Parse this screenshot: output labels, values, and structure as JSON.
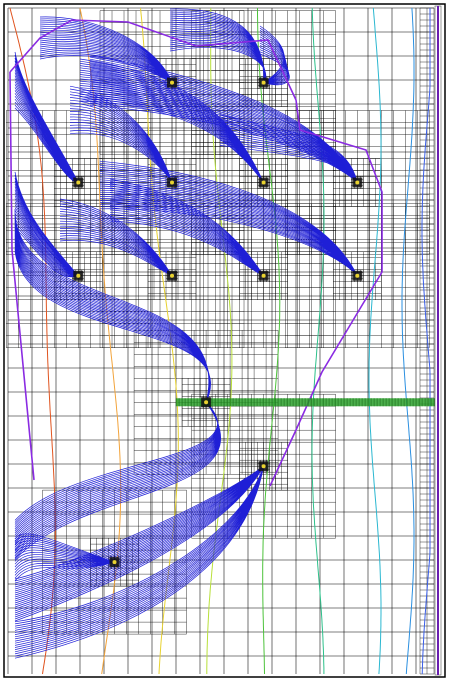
{
  "diagram": {
    "description_type": "groundwater flow model grid with pathlines and head contours",
    "colors": {
      "background": "#ffffff",
      "grid": "#000000",
      "pathline": "#1f1fd6",
      "boundary": "#8a2be2",
      "drain": "#2ca02c",
      "contour_colors": [
        "#e0541f",
        "#f2a33a",
        "#e8d230",
        "#b8e03a",
        "#4cc23a",
        "#2cc08a",
        "#2ab7d0",
        "#2a8fe0",
        "#3a5ee8"
      ]
    },
    "wells": [
      {
        "id": "w1",
        "col": 0.385,
        "row": 0.112
      },
      {
        "id": "w2",
        "col": 0.6,
        "row": 0.112
      },
      {
        "id": "w3",
        "col": 0.165,
        "row": 0.262
      },
      {
        "id": "w4",
        "col": 0.385,
        "row": 0.262
      },
      {
        "id": "w5",
        "col": 0.6,
        "row": 0.262
      },
      {
        "id": "w6",
        "col": 0.82,
        "row": 0.262
      },
      {
        "id": "w7",
        "col": 0.165,
        "row": 0.402
      },
      {
        "id": "w8",
        "col": 0.385,
        "row": 0.402
      },
      {
        "id": "w9",
        "col": 0.6,
        "row": 0.402
      },
      {
        "id": "w10",
        "col": 0.82,
        "row": 0.402
      },
      {
        "id": "w11",
        "col": 0.465,
        "row": 0.592
      },
      {
        "id": "w12",
        "col": 0.6,
        "row": 0.688
      },
      {
        "id": "w13",
        "col": 0.25,
        "row": 0.832
      }
    ]
  }
}
